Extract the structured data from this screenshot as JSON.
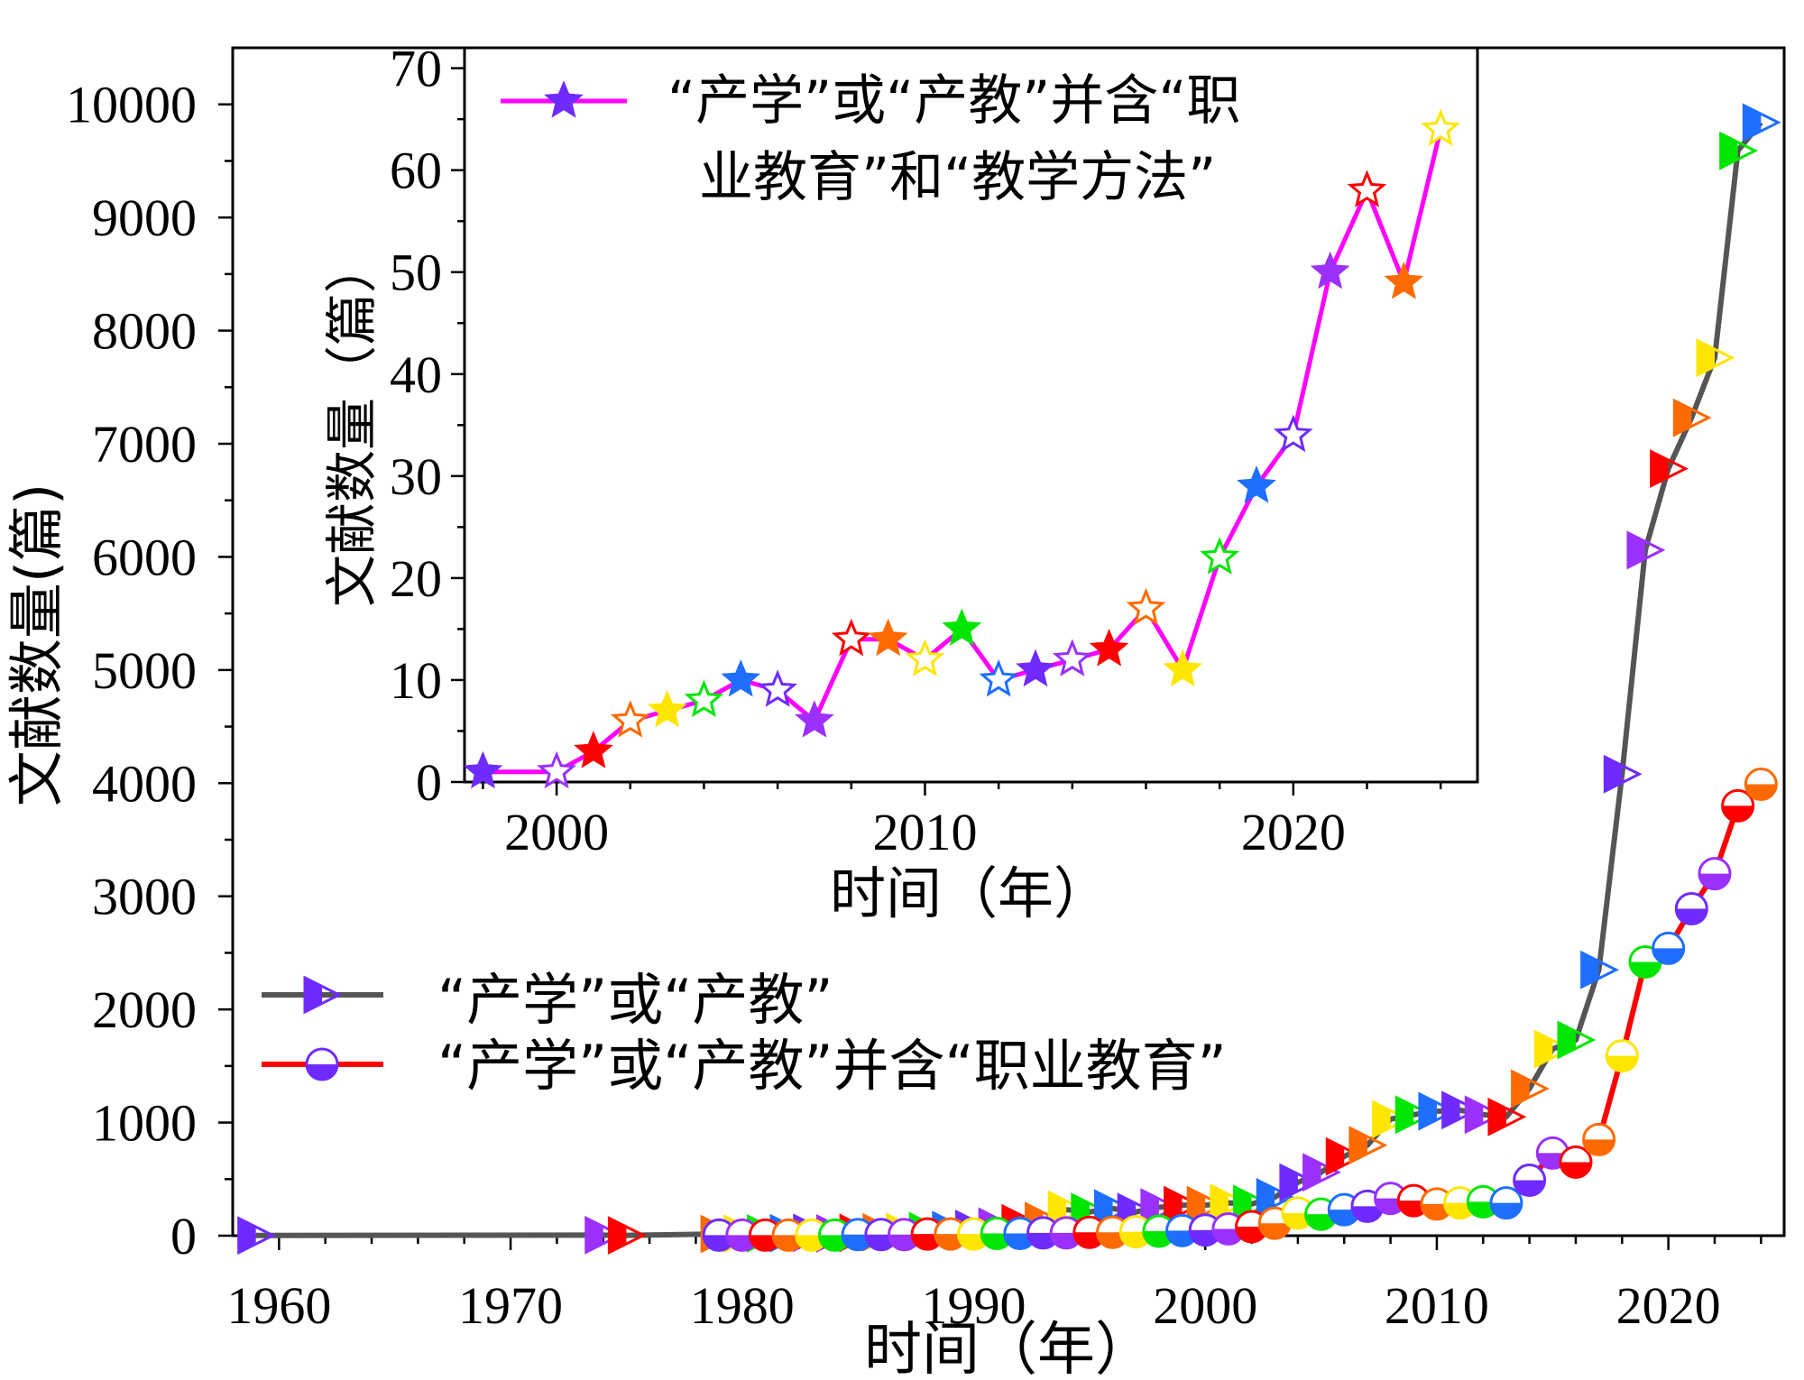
{
  "chart_data": [
    {
      "id": "main",
      "type": "line",
      "title": "",
      "xlabel": "时间（年）",
      "ylabel": "文献数量(篇)",
      "xlim": [
        1958,
        2025
      ],
      "ylim": [
        0,
        10500
      ],
      "xticks": [
        1960,
        1970,
        1980,
        1990,
        2000,
        2010,
        2020
      ],
      "yticks": [
        0,
        1000,
        2000,
        3000,
        4000,
        5000,
        6000,
        7000,
        8000,
        9000,
        10000
      ],
      "legend_position": "lower-left",
      "series": [
        {
          "name": "“产学”或“产教”",
          "line_color": "#555555",
          "marker": "right-triangle",
          "x": [
            1959,
            1974,
            1975,
            1979,
            1980,
            1981,
            1982,
            1983,
            1984,
            1985,
            1986,
            1987,
            1988,
            1989,
            1990,
            1991,
            1992,
            1993,
            1994,
            1995,
            1996,
            1997,
            1998,
            1999,
            2000,
            2001,
            2002,
            2003,
            2004,
            2005,
            2006,
            2007,
            2008,
            2009,
            2010,
            2011,
            2012,
            2013,
            2014,
            2015,
            2016,
            2017,
            2018,
            2019,
            2020,
            2021,
            2022,
            2023,
            2024
          ],
          "values": [
            2,
            5,
            3,
            15,
            18,
            20,
            22,
            25,
            20,
            25,
            30,
            35,
            40,
            50,
            60,
            80,
            110,
            130,
            230,
            210,
            240,
            210,
            250,
            270,
            270,
            290,
            280,
            340,
            470,
            560,
            700,
            800,
            1030,
            1070,
            1100,
            1110,
            1070,
            1050,
            1300,
            1650,
            1730,
            2350,
            4080,
            6060,
            6780,
            7230,
            7760,
            9590,
            9840
          ]
        },
        {
          "name": "“产学”或“产教”并含“职业教育”",
          "line_color": "#ff0000",
          "marker": "half-circle",
          "x": [
            1979,
            1980,
            1981,
            1982,
            1983,
            1984,
            1985,
            1986,
            1987,
            1988,
            1989,
            1990,
            1991,
            1992,
            1993,
            1994,
            1995,
            1996,
            1997,
            1998,
            1999,
            2000,
            2001,
            2002,
            2003,
            2004,
            2005,
            2006,
            2007,
            2008,
            2009,
            2010,
            2011,
            2012,
            2013,
            2014,
            2015,
            2016,
            2017,
            2018,
            2019,
            2020,
            2021,
            2022,
            2023,
            2024
          ],
          "values": [
            5,
            5,
            5,
            5,
            5,
            5,
            10,
            10,
            10,
            15,
            15,
            15,
            20,
            20,
            25,
            25,
            30,
            30,
            35,
            40,
            45,
            50,
            60,
            80,
            110,
            200,
            190,
            230,
            260,
            330,
            310,
            280,
            290,
            300,
            290,
            490,
            730,
            650,
            850,
            1590,
            2420,
            2540,
            2890,
            3200,
            3800,
            3990
          ]
        }
      ]
    },
    {
      "id": "inset",
      "type": "line",
      "title": "",
      "xlabel": "时间（年）",
      "ylabel": "文献数量（篇）",
      "xlim": [
        1997.5,
        2025
      ],
      "ylim": [
        0,
        72
      ],
      "xticks": [
        2000,
        2010,
        2020
      ],
      "yticks": [
        0,
        10,
        20,
        30,
        40,
        50,
        60,
        70
      ],
      "legend_position": "top",
      "series": [
        {
          "name": "“产学”或“产教”并含“职业教育”和“教学方法”",
          "line_color": "#ff00ff",
          "marker": "star",
          "x": [
            1998,
            2000,
            2001,
            2002,
            2003,
            2004,
            2005,
            2006,
            2007,
            2008,
            2009,
            2010,
            2011,
            2012,
            2013,
            2014,
            2015,
            2016,
            2017,
            2018,
            2019,
            2020,
            2021,
            2022,
            2023,
            2024
          ],
          "values": [
            1,
            1,
            3,
            6,
            7,
            8,
            10,
            9,
            6,
            14,
            14,
            12,
            15,
            10,
            11,
            12,
            13,
            17,
            11,
            22,
            29,
            34,
            50,
            58,
            49,
            64
          ]
        }
      ]
    }
  ],
  "main_legend": {
    "series_1": "“产学”或“产教”",
    "series_2": "“产学”或“产教”并含“职业教育”"
  },
  "inset_legend": {
    "line_1": "“产学”或“产教”并含“职",
    "line_2": "业教育”和“教学方法”"
  },
  "marker_colors": [
    "#6f2bff",
    "#9b30ff",
    "#ff0000",
    "#ff6a00",
    "#ffe600",
    "#00e600",
    "#1e6fff"
  ]
}
